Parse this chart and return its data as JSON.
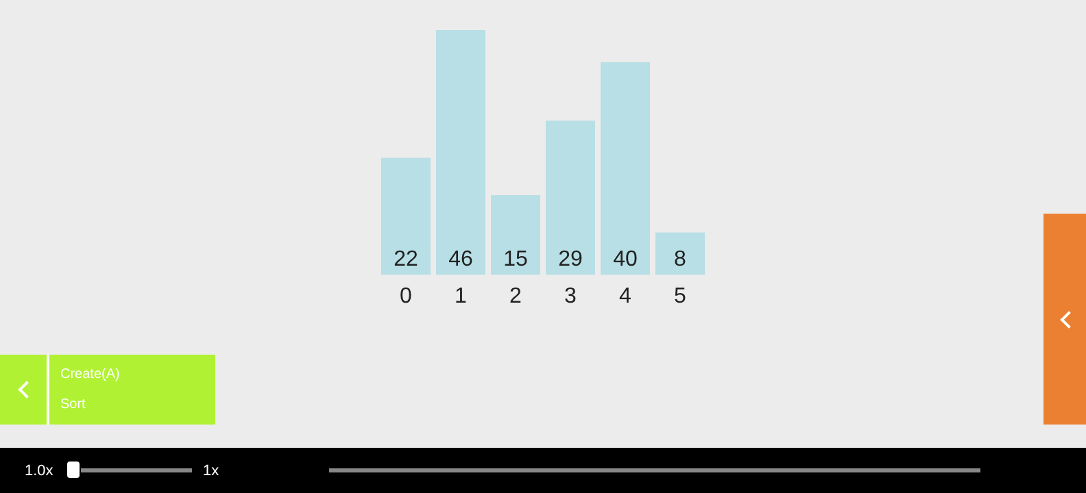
{
  "chart_data": {
    "type": "bar",
    "categories": [
      "0",
      "1",
      "2",
      "3",
      "4",
      "5"
    ],
    "values": [
      22,
      46,
      15,
      29,
      40,
      8
    ],
    "color": "#b7dfe5",
    "data_labels": true,
    "grid": false,
    "legend": false,
    "tick_labels": "x",
    "annotations": [
      "Create(A)",
      "Sort",
      "1.0x",
      "1x"
    ]
  }
}
